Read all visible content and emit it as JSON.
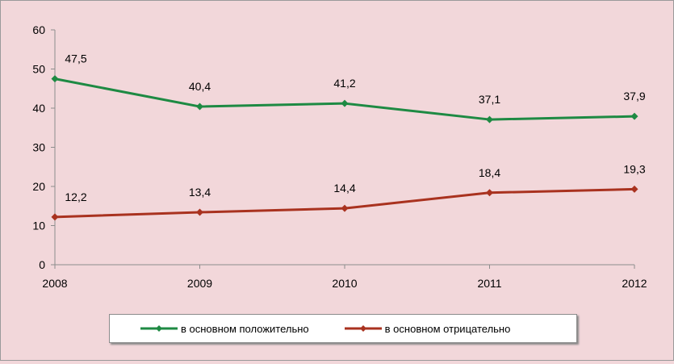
{
  "chart_data": {
    "type": "line",
    "categories": [
      "2008",
      "2009",
      "2010",
      "2011",
      "2012"
    ],
    "yticks": [
      "0",
      "10",
      "20",
      "30",
      "40",
      "50",
      "60"
    ],
    "ylim": [
      0,
      60
    ],
    "grid": false,
    "legend_position": "bottom",
    "series": [
      {
        "name": "в основном положительно",
        "color": "#1e8a43",
        "values": [
          47.5,
          40.4,
          41.2,
          37.1,
          37.9
        ],
        "labels": [
          "47,5",
          "40,4",
          "41,2",
          "37,1",
          "37,9"
        ]
      },
      {
        "name": "в основном отрицательно",
        "color": "#a9321f",
        "values": [
          12.2,
          13.4,
          14.4,
          18.4,
          19.3
        ],
        "labels": [
          "12,2",
          "13,4",
          "14,4",
          "18,4",
          "19,3"
        ]
      }
    ]
  }
}
